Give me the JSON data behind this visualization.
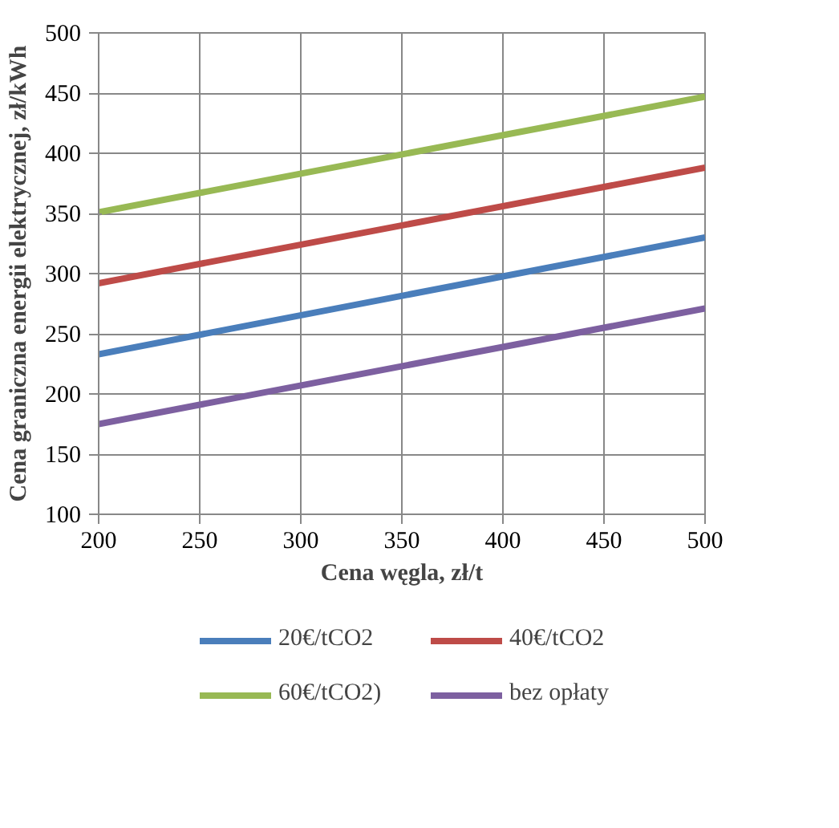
{
  "chart_data": {
    "type": "line",
    "xlabel": "Cena węgla, zł/t",
    "ylabel": "Cena graniczna energii elektrycznej, zł/kWh",
    "x": [
      200,
      500
    ],
    "series": [
      {
        "name": "20€/tCO2",
        "color": "#4a7ebb",
        "values": [
          233,
          330
        ]
      },
      {
        "name": "40€/tCO2",
        "color": "#be4b48",
        "values": [
          292,
          388
        ]
      },
      {
        "name": "60€/tCO2)",
        "color": "#98b954",
        "values": [
          351,
          447
        ]
      },
      {
        "name": "bez opłaty",
        "color": "#7d60a0",
        "values": [
          175,
          271
        ]
      }
    ],
    "xlim": [
      200,
      500
    ],
    "xticks": [
      200,
      250,
      300,
      350,
      400,
      450,
      500
    ],
    "ylim": [
      100,
      500
    ],
    "yticks": [
      100,
      150,
      200,
      250,
      300,
      350,
      400,
      450,
      500
    ],
    "grid": true,
    "legend": "bottom",
    "marker": "none",
    "line_style": "solid"
  }
}
